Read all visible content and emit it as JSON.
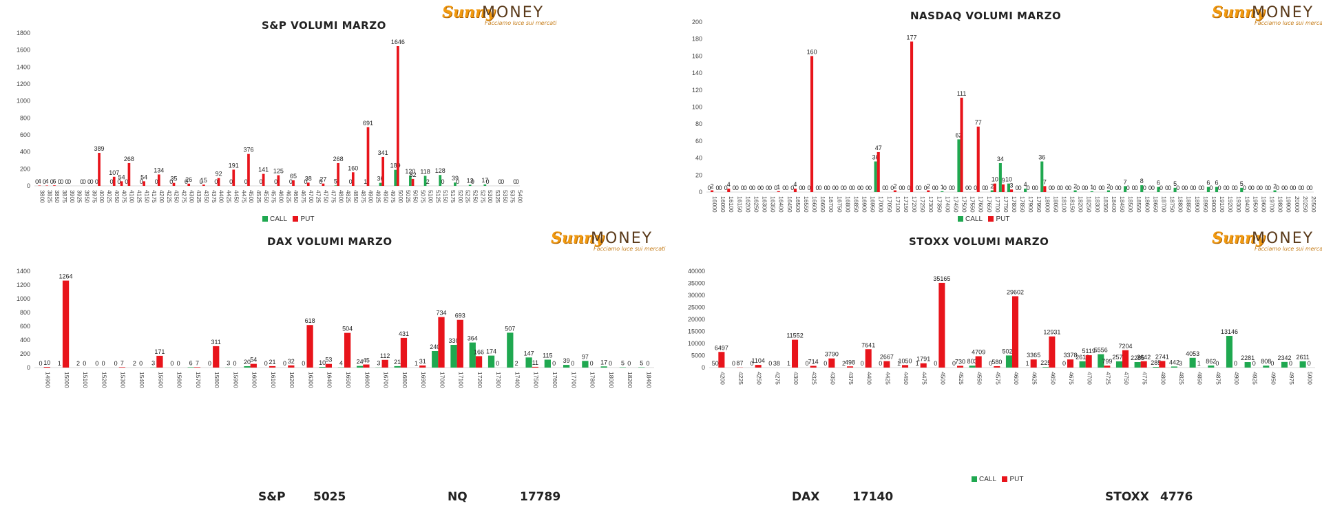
{
  "brand": {
    "name_a": "Sunny",
    "name_b": "MONEY",
    "tagline": "Facciamo luce sui mercati"
  },
  "legend": {
    "call": "CALL",
    "put": "PUT"
  },
  "colors": {
    "call": "#1fa850",
    "put": "#e8141b",
    "axis": "#d9d9d9",
    "text": "#404040"
  },
  "levels": [
    {
      "label": "S&P",
      "value": "5025"
    },
    {
      "label": "NQ",
      "value": "17789"
    },
    {
      "label": "DAX",
      "value": "17140"
    },
    {
      "label": "STOXX",
      "value": "4776"
    }
  ],
  "chart_data": [
    {
      "type": "bar",
      "title": "S&P VOLUMI MARZO",
      "ylim": [
        0,
        1800
      ],
      "yticks": [
        0,
        200,
        400,
        600,
        800,
        1000,
        1200,
        1400,
        1600,
        1800
      ],
      "categories": [
        "3800",
        "3825",
        "3850",
        "3875",
        "3900",
        "3925",
        "3950",
        "3975",
        "4000",
        "4025",
        "4050",
        "4075",
        "4100",
        "4125",
        "4150",
        "4175",
        "4200",
        "4225",
        "4250",
        "4275",
        "4300",
        "4325",
        "4350",
        "4375",
        "4400",
        "4425",
        "4450",
        "4475",
        "4500",
        "4525",
        "4550",
        "4575",
        "4600",
        "4625",
        "4650",
        "4675",
        "4700",
        "4725",
        "4750",
        "4775",
        "4800",
        "4825",
        "4850",
        "4875",
        "4900",
        "4925",
        "4950",
        "4975",
        "5000",
        "5025",
        "5050",
        "5075",
        "5100",
        "5125",
        "5150",
        "5175",
        "5200",
        "5225",
        "5250",
        "5275",
        "5300",
        "5325",
        "5350",
        "5375",
        "5400"
      ],
      "series": [
        {
          "name": "CALL",
          "values": [
            0,
            0,
            0,
            0,
            0,
            null,
            0,
            0,
            0,
            null,
            0,
            0,
            0,
            null,
            0,
            null,
            0,
            null,
            0,
            null,
            0,
            null,
            0,
            null,
            0,
            null,
            0,
            null,
            0,
            null,
            0,
            null,
            0,
            null,
            0,
            null,
            0,
            null,
            0,
            null,
            5,
            null,
            0,
            null,
            1,
            null,
            36,
            null,
            189,
            null,
            120,
            null,
            118,
            null,
            128,
            null,
            39,
            null,
            13,
            null,
            17,
            null,
            0,
            null,
            0
          ]
        },
        {
          "name": "PUT",
          "values": [
            4,
            4,
            6,
            0,
            0,
            null,
            0,
            0,
            389,
            null,
            107,
            54,
            268,
            null,
            54,
            null,
            134,
            null,
            35,
            null,
            26,
            null,
            15,
            null,
            92,
            null,
            191,
            null,
            376,
            null,
            141,
            null,
            125,
            null,
            65,
            null,
            38,
            null,
            27,
            null,
            268,
            null,
            160,
            null,
            691,
            null,
            341,
            null,
            1646,
            null,
            82,
            null,
            2,
            null,
            0,
            null,
            0,
            null,
            0,
            null,
            0,
            null,
            0,
            null,
            0
          ]
        }
      ]
    },
    {
      "type": "bar",
      "title": "NASDAQ VOLUMI MARZO",
      "ylim": [
        0,
        200
      ],
      "yticks": [
        0,
        20,
        40,
        60,
        80,
        100,
        120,
        140,
        160,
        180,
        200
      ],
      "categories": [
        "16000",
        "16050",
        "16100",
        "16150",
        "16200",
        "16250",
        "16300",
        "16350",
        "16400",
        "16450",
        "16500",
        "16550",
        "16600",
        "16650",
        "16700",
        "16750",
        "16800",
        "16850",
        "16900",
        "16950",
        "17000",
        "17050",
        "17100",
        "17150",
        "17200",
        "17250",
        "17300",
        "17350",
        "17400",
        "17450",
        "17500",
        "17550",
        "17600",
        "17650",
        "17700",
        "17750",
        "17800",
        "17850",
        "17900",
        "17950",
        "18000",
        "18050",
        "18100",
        "18150",
        "18200",
        "18250",
        "18300",
        "18350",
        "18400",
        "18450",
        "18500",
        "18550",
        "18600",
        "18650",
        "18700",
        "18750",
        "18800",
        "18850",
        "18900",
        "18950",
        "19000",
        "19100",
        "19200",
        "19300",
        "19400",
        "19500",
        "19600",
        "19700",
        "19800",
        "19900",
        "20000",
        "20250",
        "20500"
      ],
      "series": [
        {
          "name": "CALL",
          "values": [
            0,
            0,
            0,
            0,
            0,
            0,
            0,
            0,
            0,
            0,
            0,
            0,
            0,
            0,
            0,
            0,
            0,
            0,
            0,
            0,
            36,
            0,
            0,
            0,
            0,
            0,
            0,
            0,
            1,
            0,
            62,
            0,
            0,
            0,
            2,
            34,
            10,
            0,
            4,
            0,
            36,
            0,
            0,
            0,
            2,
            0,
            1,
            0,
            2,
            0,
            7,
            0,
            8,
            0,
            6,
            0,
            5,
            0,
            0,
            0,
            6,
            6,
            0,
            0,
            5,
            0,
            0,
            0,
            2,
            0,
            0,
            0,
            0
          ]
        },
        {
          "name": "PUT",
          "values": [
            2,
            0,
            4,
            0,
            0,
            0,
            0,
            0,
            1,
            0,
            4,
            0,
            160,
            0,
            0,
            0,
            0,
            0,
            0,
            0,
            47,
            0,
            2,
            0,
            177,
            0,
            2,
            0,
            0,
            0,
            111,
            0,
            77,
            0,
            10,
            9,
            3,
            0,
            0,
            0,
            7,
            0,
            0,
            0,
            0,
            0,
            0,
            0,
            0,
            0,
            0,
            0,
            0,
            0,
            0,
            0,
            0,
            0,
            0,
            0,
            0,
            0,
            0,
            0,
            0,
            0,
            0,
            0,
            0,
            0,
            0,
            0,
            0
          ]
        }
      ]
    },
    {
      "type": "bar",
      "title": "DAX VOLUMI MARZO",
      "ylim": [
        0,
        1400
      ],
      "yticks": [
        0,
        200,
        400,
        600,
        800,
        1000,
        1200,
        1400
      ],
      "categories": [
        "14900",
        "15000",
        "15100",
        "15200",
        "15300",
        "15400",
        "15500",
        "15600",
        "15700",
        "15800",
        "15900",
        "16000",
        "16100",
        "16200",
        "16300",
        "16400",
        "16500",
        "16600",
        "16700",
        "16800",
        "16900",
        "17000",
        "17100",
        "17200",
        "17300",
        "17400",
        "17500",
        "17600",
        "17700",
        "17800",
        "18000",
        "18200",
        "18400"
      ],
      "series": [
        {
          "name": "CALL",
          "values": [
            0,
            1,
            2,
            0,
            0,
            2,
            3,
            0,
            6,
            0,
            3,
            20,
            0,
            0,
            0,
            10,
            4,
            24,
            3,
            21,
            1,
            240,
            330,
            364,
            174,
            507,
            147,
            115,
            39,
            97,
            17,
            5,
            5
          ]
        },
        {
          "name": "PUT",
          "values": [
            10,
            1264,
            0,
            0,
            7,
            0,
            171,
            0,
            7,
            311,
            0,
            54,
            21,
            32,
            618,
            53,
            504,
            45,
            112,
            431,
            31,
            734,
            693,
            166,
            0,
            2,
            11,
            0,
            0,
            0,
            0,
            0,
            0
          ]
        }
      ]
    },
    {
      "type": "bar",
      "title": "STOXX VOLUMI MARZO",
      "ylim": [
        0,
        40000
      ],
      "yticks": [
        0,
        5000,
        10000,
        15000,
        20000,
        25000,
        30000,
        35000,
        40000
      ],
      "categories": [
        "4200",
        "4225",
        "4250",
        "4275",
        "4300",
        "4325",
        "4350",
        "4375",
        "4400",
        "4425",
        "4450",
        "4475",
        "4500",
        "4525",
        "4550",
        "4575",
        "4600",
        "4625",
        "4650",
        "4675",
        "4700",
        "4725",
        "4750",
        "4775",
        "4800",
        "4825",
        "4850",
        "4875",
        "4900",
        "4925",
        "4950",
        "4975",
        "5000"
      ],
      "series": [
        {
          "name": "CALL",
          "values": [
            50,
            0,
            0,
            0,
            1,
            0,
            0,
            2,
            0,
            0,
            1,
            1,
            0,
            0,
            803,
            0,
            5027,
            1,
            225,
            0,
            2613,
            5556,
            2579,
            2285,
            285,
            442,
            4053,
            862,
            13146,
            2281,
            808,
            2342,
            2611
          ]
        },
        {
          "name": "PUT",
          "values": [
            6497,
            87,
            1104,
            38,
            11552,
            714,
            3790,
            498,
            7641,
            2667,
            1050,
            1791,
            35165,
            730,
            4709,
            580,
            29602,
            3365,
            12931,
            3378,
            5119,
            799,
            7204,
            2642,
            2741,
            3,
            1,
            0,
            0,
            0,
            0,
            0,
            0
          ]
        }
      ]
    }
  ]
}
